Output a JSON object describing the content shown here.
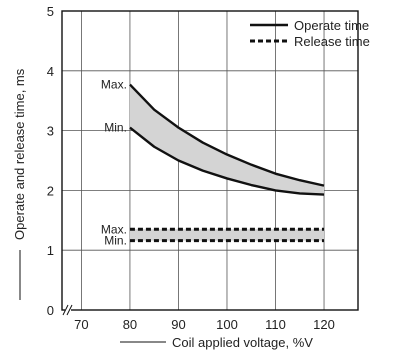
{
  "chart_data": {
    "type": "line",
    "xlabel": "Coil applied voltage, %V",
    "ylabel": "Operate and release time, ms",
    "xlim": [
      66,
      127
    ],
    "ylim": [
      0,
      5
    ],
    "xticks": [
      70,
      80,
      90,
      100,
      110,
      120
    ],
    "yticks": [
      0,
      1,
      2,
      3,
      4,
      5
    ],
    "x_axis_break": true,
    "grid": true,
    "legend": {
      "placement": "top-right",
      "entries": [
        {
          "label": "Operate time",
          "style": "solid"
        },
        {
          "label": "Release time",
          "style": "dashed"
        }
      ]
    },
    "series": [
      {
        "name": "Operate time",
        "bound": "Max.",
        "style": "solid",
        "x": [
          80,
          85,
          90,
          95,
          100,
          105,
          110,
          115,
          120
        ],
        "y": [
          3.77,
          3.35,
          3.05,
          2.8,
          2.6,
          2.43,
          2.28,
          2.17,
          2.08
        ]
      },
      {
        "name": "Operate time",
        "bound": "Min.",
        "style": "solid",
        "x": [
          80,
          85,
          90,
          95,
          100,
          105,
          110,
          115,
          120
        ],
        "y": [
          3.05,
          2.73,
          2.5,
          2.33,
          2.2,
          2.09,
          2.0,
          1.95,
          1.93
        ]
      },
      {
        "name": "Release time",
        "bound": "Max.",
        "style": "dashed",
        "x": [
          80,
          120
        ],
        "y": [
          1.35,
          1.35
        ]
      },
      {
        "name": "Release time",
        "bound": "Min.",
        "style": "dashed",
        "x": [
          80,
          120
        ],
        "y": [
          1.16,
          1.16
        ]
      }
    ],
    "annotations": [
      {
        "text": "Max.",
        "x": 80,
        "y": 3.77
      },
      {
        "text": "Min.",
        "x": 80,
        "y": 3.05
      },
      {
        "text": "Max.",
        "x": 80,
        "y": 1.35
      },
      {
        "text": "Min.",
        "x": 80,
        "y": 1.16
      }
    ],
    "band_fill": "#d4d4d4",
    "line_color": "#111111"
  }
}
